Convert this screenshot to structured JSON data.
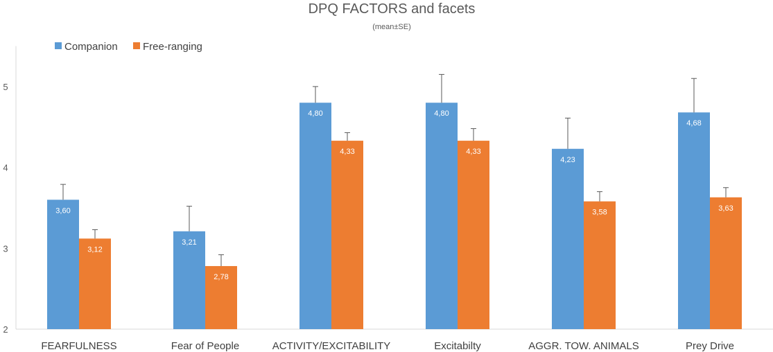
{
  "chart_data": {
    "type": "bar",
    "title": "DPQ FACTORS and facets",
    "subtitle": "(mean±SE)",
    "categories": [
      "FEARFULNESS",
      "Fear of People",
      "ACTIVITY/EXCITABILITY",
      "Excitabilty",
      "AGGR. TOW. ANIMALS",
      "Prey Drive"
    ],
    "series": [
      {
        "name": "Companion",
        "color": "#5B9BD5",
        "values": [
          3.6,
          3.21,
          4.8,
          4.8,
          4.23,
          4.68
        ],
        "labels": [
          "3,60",
          "3,21",
          "4,80",
          "4,80",
          "4,23",
          "4,68"
        ],
        "se": [
          0.19,
          0.31,
          0.2,
          0.35,
          0.38,
          0.42
        ]
      },
      {
        "name": "Free-ranging",
        "color": "#ED7D31",
        "values": [
          3.12,
          2.78,
          4.33,
          4.33,
          3.58,
          3.63
        ],
        "labels": [
          "3,12",
          "2,78",
          "4,33",
          "4,33",
          "3,58",
          "3,63"
        ],
        "se": [
          0.11,
          0.14,
          0.1,
          0.15,
          0.12,
          0.12
        ]
      }
    ],
    "yticks": [
      2,
      3,
      4,
      5
    ],
    "ylim": [
      2,
      5.5
    ],
    "legend": "top-left",
    "grid": false
  }
}
